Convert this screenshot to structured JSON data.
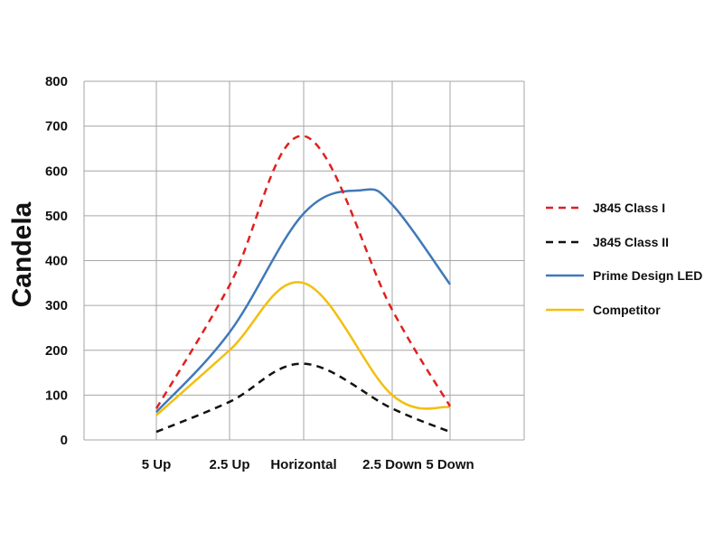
{
  "chart_data": {
    "type": "line",
    "title": "",
    "xlabel": "",
    "ylabel": "Candela",
    "categories": [
      "5 Up",
      "2.5 Up",
      "Horizontal",
      "2.5 Down",
      "5 Down"
    ],
    "ylim": [
      0,
      800
    ],
    "yticks": [
      0,
      100,
      200,
      300,
      400,
      500,
      600,
      700,
      800
    ],
    "grid": true,
    "legend_position": "right",
    "series": [
      {
        "name": "J845 Class I",
        "style": "dashed",
        "color": "#e02020",
        "x": [
          0,
          1,
          2,
          3,
          4
        ],
        "values": [
          70,
          345,
          678,
          290,
          75
        ]
      },
      {
        "name": "J845 Class II",
        "style": "dashed",
        "color": "#111111",
        "x": [
          0,
          1,
          2,
          3,
          4
        ],
        "values": [
          18,
          85,
          170,
          70,
          18
        ]
      },
      {
        "name": "Prime Design LED",
        "style": "solid",
        "color": "#3f79b8",
        "x": [
          0,
          1,
          2,
          2.65,
          3,
          4
        ],
        "values": [
          62,
          240,
          505,
          557,
          525,
          347
        ]
      },
      {
        "name": "Competitor",
        "style": "solid",
        "color": "#f2bf0f",
        "x": [
          0,
          1,
          2,
          3,
          4
        ],
        "values": [
          55,
          200,
          350,
          100,
          73
        ]
      }
    ]
  }
}
